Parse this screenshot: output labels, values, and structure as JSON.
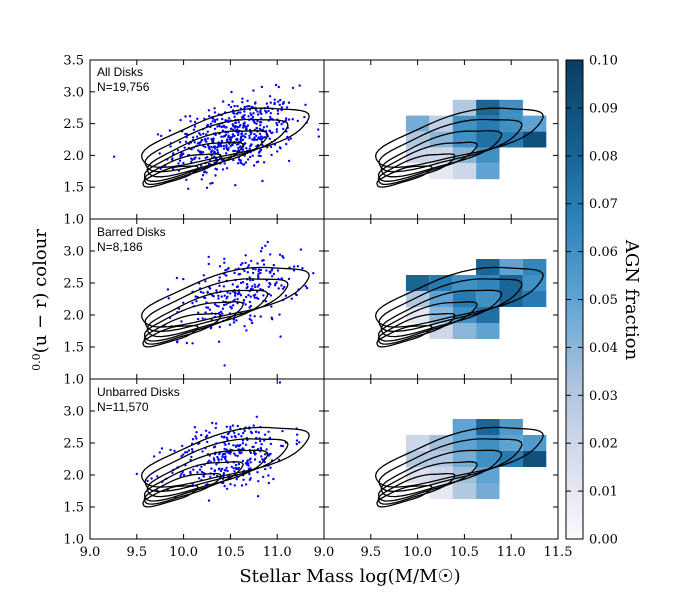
{
  "chart_data": {
    "type": "scatter",
    "layout": "3x2 panel grid with shared axes and a colorbar",
    "xlabel": "Stellar Mass log(M/M☉)",
    "ylabel": "0.0(u − r) colour",
    "ylabel_parts": {
      "sup": "0.0",
      "main": "(u − r) colour"
    },
    "left_xlim": [
      9.0,
      11.5
    ],
    "right_xlim": [
      9.0,
      11.5
    ],
    "ylim": [
      1.0,
      3.5
    ],
    "left_xticks": [
      "9.0",
      "9.5",
      "10.0",
      "10.5",
      "11.0"
    ],
    "right_xticks": [
      "9.0",
      "9.5",
      "10.0",
      "10.5",
      "11.0",
      "11.5"
    ],
    "yticks": [
      "1.0",
      "1.5",
      "2.0",
      "2.5",
      "3.0",
      "3.5"
    ],
    "yticks_lower": [
      "1.0",
      "1.5",
      "2.0",
      "2.5",
      "3.0"
    ],
    "colorbar": {
      "label": "AGN fraction",
      "range": [
        0.0,
        0.1
      ],
      "ticks": [
        "0.00",
        "0.01",
        "0.02",
        "0.03",
        "0.04",
        "0.05",
        "0.06",
        "0.07",
        "0.08",
        "0.09",
        "0.10"
      ],
      "colors": [
        "#fbf9fc",
        "#d7dcec",
        "#a9c2dd",
        "#5fa3d2",
        "#2d83bb",
        "#145d8d",
        "#0b3e63"
      ]
    },
    "scatter_color": "#0000ff",
    "panels": [
      {
        "label": "All Disks",
        "count": "N=19,756",
        "scatter_center": [
          10.55,
          2.3
        ],
        "scatter_n": 540,
        "agn_grid": [
          {
            "x": 10.0,
            "y": 2.5,
            "v": 0.045
          },
          {
            "x": 10.25,
            "y": 2.5,
            "v": 0.025
          },
          {
            "x": 10.5,
            "y": 2.5,
            "v": 0.06
          },
          {
            "x": 10.75,
            "y": 2.5,
            "v": 0.07
          },
          {
            "x": 11.0,
            "y": 2.5,
            "v": 0.06
          },
          {
            "x": 11.25,
            "y": 2.5,
            "v": 0.05
          },
          {
            "x": 10.0,
            "y": 2.25,
            "v": 0.03
          },
          {
            "x": 10.25,
            "y": 2.25,
            "v": 0.04
          },
          {
            "x": 10.5,
            "y": 2.25,
            "v": 0.06
          },
          {
            "x": 10.75,
            "y": 2.25,
            "v": 0.075
          },
          {
            "x": 11.0,
            "y": 2.25,
            "v": 0.07
          },
          {
            "x": 11.25,
            "y": 2.25,
            "v": 0.09
          },
          {
            "x": 10.5,
            "y": 2.75,
            "v": 0.03
          },
          {
            "x": 10.75,
            "y": 2.75,
            "v": 0.08
          },
          {
            "x": 11.0,
            "y": 2.75,
            "v": 0.06
          },
          {
            "x": 10.0,
            "y": 2.0,
            "v": 0.02
          },
          {
            "x": 10.25,
            "y": 2.0,
            "v": 0.02
          },
          {
            "x": 10.5,
            "y": 2.0,
            "v": 0.04
          },
          {
            "x": 10.75,
            "y": 2.0,
            "v": 0.06
          },
          {
            "x": 10.25,
            "y": 1.75,
            "v": 0.01
          },
          {
            "x": 10.5,
            "y": 1.75,
            "v": 0.02
          },
          {
            "x": 10.75,
            "y": 1.75,
            "v": 0.05
          }
        ]
      },
      {
        "label": "Barred Disks",
        "count": "N=8,186",
        "scatter_center": [
          10.6,
          2.35
        ],
        "scatter_n": 260,
        "agn_grid": [
          {
            "x": 10.0,
            "y": 2.5,
            "v": 0.08
          },
          {
            "x": 10.25,
            "y": 2.5,
            "v": 0.07
          },
          {
            "x": 10.5,
            "y": 2.5,
            "v": 0.06
          },
          {
            "x": 10.75,
            "y": 2.5,
            "v": 0.065
          },
          {
            "x": 11.0,
            "y": 2.5,
            "v": 0.08
          },
          {
            "x": 11.25,
            "y": 2.5,
            "v": 0.06
          },
          {
            "x": 10.0,
            "y": 2.25,
            "v": 0.03
          },
          {
            "x": 10.25,
            "y": 2.25,
            "v": 0.05
          },
          {
            "x": 10.5,
            "y": 2.25,
            "v": 0.07
          },
          {
            "x": 10.75,
            "y": 2.25,
            "v": 0.06
          },
          {
            "x": 11.0,
            "y": 2.25,
            "v": 0.08
          },
          {
            "x": 11.25,
            "y": 2.25,
            "v": 0.07
          },
          {
            "x": 10.75,
            "y": 2.75,
            "v": 0.08
          },
          {
            "x": 11.0,
            "y": 2.75,
            "v": 0.05
          },
          {
            "x": 11.25,
            "y": 2.75,
            "v": 0.065
          },
          {
            "x": 10.0,
            "y": 2.0,
            "v": 0.01
          },
          {
            "x": 10.25,
            "y": 2.0,
            "v": 0.04
          },
          {
            "x": 10.5,
            "y": 2.0,
            "v": 0.06
          },
          {
            "x": 10.75,
            "y": 2.0,
            "v": 0.075
          },
          {
            "x": 10.25,
            "y": 1.75,
            "v": 0.02
          },
          {
            "x": 10.5,
            "y": 1.75,
            "v": 0.04
          },
          {
            "x": 10.75,
            "y": 1.75,
            "v": 0.05
          }
        ]
      },
      {
        "label": "Unbarred Disks",
        "count": "N=11,570",
        "scatter_center": [
          10.5,
          2.3
        ],
        "scatter_n": 300,
        "agn_grid": [
          {
            "x": 10.0,
            "y": 2.5,
            "v": 0.02
          },
          {
            "x": 10.25,
            "y": 2.5,
            "v": 0.035
          },
          {
            "x": 10.5,
            "y": 2.5,
            "v": 0.05
          },
          {
            "x": 10.75,
            "y": 2.5,
            "v": 0.06
          },
          {
            "x": 11.0,
            "y": 2.5,
            "v": 0.05
          },
          {
            "x": 11.25,
            "y": 2.5,
            "v": 0.055
          },
          {
            "x": 10.0,
            "y": 2.25,
            "v": 0.03
          },
          {
            "x": 10.25,
            "y": 2.25,
            "v": 0.03
          },
          {
            "x": 10.5,
            "y": 2.25,
            "v": 0.045
          },
          {
            "x": 10.75,
            "y": 2.25,
            "v": 0.06
          },
          {
            "x": 11.0,
            "y": 2.25,
            "v": 0.07
          },
          {
            "x": 11.25,
            "y": 2.25,
            "v": 0.09
          },
          {
            "x": 10.5,
            "y": 2.75,
            "v": 0.05
          },
          {
            "x": 10.75,
            "y": 2.75,
            "v": 0.08
          },
          {
            "x": 11.0,
            "y": 2.75,
            "v": 0.055
          },
          {
            "x": 10.0,
            "y": 2.0,
            "v": 0.015
          },
          {
            "x": 10.25,
            "y": 2.0,
            "v": 0.02
          },
          {
            "x": 10.5,
            "y": 2.0,
            "v": 0.035
          },
          {
            "x": 10.75,
            "y": 2.0,
            "v": 0.05
          },
          {
            "x": 10.25,
            "y": 1.75,
            "v": 0.01
          },
          {
            "x": 10.5,
            "y": 1.75,
            "v": 0.03
          },
          {
            "x": 10.75,
            "y": 1.75,
            "v": 0.045
          }
        ]
      }
    ],
    "contour_levels": [
      {
        "cx": 10.45,
        "cy": 2.3,
        "rx": 0.95,
        "ry": 0.27,
        "angle": 0.42
      },
      {
        "cx": 10.35,
        "cy": 2.18,
        "rx": 0.82,
        "ry": 0.22,
        "angle": 0.45
      },
      {
        "cx": 10.25,
        "cy": 2.05,
        "rx": 0.7,
        "ry": 0.18,
        "angle": 0.48
      },
      {
        "cx": 10.1,
        "cy": 1.92,
        "rx": 0.58,
        "ry": 0.14,
        "angle": 0.5
      },
      {
        "cx": 9.98,
        "cy": 1.8,
        "rx": 0.45,
        "ry": 0.11,
        "angle": 0.5
      },
      {
        "cx": 9.85,
        "cy": 1.68,
        "rx": 0.32,
        "ry": 0.08,
        "angle": 0.48
      }
    ]
  }
}
